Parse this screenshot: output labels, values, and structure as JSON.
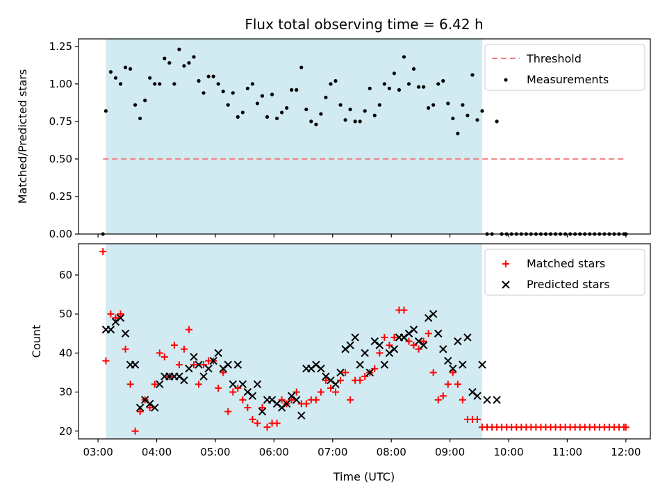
{
  "chart_data": [
    {
      "type": "scatter",
      "title": "Flux total observing time = 6.42 h",
      "xlabel": "",
      "ylabel": "Matched/Predicted stars",
      "xlim": [
        "02:40",
        "12:25"
      ],
      "ylim": [
        0,
        1.3
      ],
      "yticks": [
        "0.00",
        "0.25",
        "0.50",
        "0.75",
        "1.00",
        "1.25"
      ],
      "shaded_interval": [
        "03:08",
        "09:33"
      ],
      "shade_color": "#add8e6",
      "grid": false,
      "legend": "top-right",
      "series": [
        {
          "name": "Threshold",
          "style": "dashed-line",
          "color": "#f08080",
          "x": [
            "03:05",
            "12:00"
          ],
          "y": [
            0.5,
            0.5
          ]
        },
        {
          "name": "Measurements",
          "style": "dot",
          "color": "#000000",
          "x": [
            "03:05",
            "03:08",
            "03:13",
            "03:18",
            "03:23",
            "03:28",
            "03:33",
            "03:38",
            "03:43",
            "03:48",
            "03:53",
            "03:58",
            "04:03",
            "04:08",
            "04:13",
            "04:18",
            "04:23",
            "04:28",
            "04:33",
            "04:38",
            "04:43",
            "04:48",
            "04:53",
            "04:58",
            "05:03",
            "05:08",
            "05:13",
            "05:18",
            "05:23",
            "05:28",
            "05:33",
            "05:38",
            "05:43",
            "05:48",
            "05:53",
            "05:58",
            "06:03",
            "06:08",
            "06:13",
            "06:18",
            "06:23",
            "06:28",
            "06:33",
            "06:38",
            "06:43",
            "06:48",
            "06:53",
            "06:58",
            "07:03",
            "07:08",
            "07:13",
            "07:18",
            "07:23",
            "07:28",
            "07:33",
            "07:38",
            "07:43",
            "07:48",
            "07:53",
            "07:58",
            "08:03",
            "08:08",
            "08:13",
            "08:18",
            "08:23",
            "08:28",
            "08:33",
            "08:38",
            "08:43",
            "08:48",
            "08:53",
            "08:58",
            "09:03",
            "09:08",
            "09:13",
            "09:18",
            "09:23",
            "09:28",
            "09:33",
            "09:38",
            "09:43",
            "09:48",
            "09:53",
            "09:58",
            "10:03",
            "10:08",
            "10:13",
            "10:18",
            "10:23",
            "10:28",
            "10:33",
            "10:38",
            "10:43",
            "10:48",
            "10:53",
            "10:58",
            "11:03",
            "11:08",
            "11:13",
            "11:18",
            "11:23",
            "11:28",
            "11:33",
            "11:38",
            "11:43",
            "11:48",
            "11:53",
            "11:58",
            "12:00"
          ],
          "y": [
            0.0,
            0.82,
            1.08,
            1.04,
            1.0,
            1.11,
            1.1,
            0.86,
            0.77,
            0.89,
            1.04,
            1.0,
            1.0,
            1.17,
            1.14,
            1.0,
            1.23,
            1.12,
            1.14,
            1.18,
            1.02,
            0.94,
            1.05,
            1.05,
            1.0,
            0.95,
            0.86,
            0.94,
            0.78,
            0.81,
            0.97,
            1.0,
            0.87,
            0.92,
            0.78,
            0.93,
            0.77,
            0.81,
            0.84,
            0.96,
            0.96,
            1.11,
            0.83,
            0.75,
            0.73,
            0.8,
            0.91,
            1.0,
            1.02,
            0.86,
            0.76,
            0.83,
            0.75,
            0.75,
            0.82,
            0.97,
            0.79,
            0.86,
            1.0,
            0.97,
            1.07,
            0.96,
            1.18,
            1.0,
            1.1,
            0.98,
            0.98,
            0.84,
            0.86,
            1.0,
            1.02,
            0.87,
            0.77,
            0.67,
            0.86,
            0.79,
            1.06,
            0.76,
            0.82,
            0.0,
            0.0,
            0.75,
            0.0,
            0.0,
            0.0,
            0.0,
            0.0,
            0.0,
            0.0,
            0.0,
            0.0,
            0.0,
            0.0,
            0.0,
            0.0,
            0.0,
            0.0,
            0.0,
            0.0,
            0.0,
            0.0,
            0.0,
            0.0,
            0.0,
            0.0,
            0.0,
            0.0,
            0.0,
            0.0
          ]
        }
      ]
    },
    {
      "type": "scatter",
      "title": "",
      "xlabel": "Time (UTC)",
      "ylabel": "Count",
      "xlim": [
        "02:40",
        "12:25"
      ],
      "ylim": [
        18,
        68
      ],
      "yticks": [
        "20",
        "30",
        "40",
        "50",
        "60"
      ],
      "xticks": [
        "03:00",
        "04:00",
        "05:00",
        "06:00",
        "07:00",
        "08:00",
        "09:00",
        "10:00",
        "11:00",
        "12:00"
      ],
      "shaded_interval": [
        "03:08",
        "09:33"
      ],
      "shade_color": "#add8e6",
      "grid": false,
      "legend": "top-right",
      "series": [
        {
          "name": "Matched stars",
          "style": "plus",
          "color": "#ff0000",
          "x": [
            "03:05",
            "03:08",
            "03:13",
            "03:18",
            "03:23",
            "03:28",
            "03:33",
            "03:38",
            "03:43",
            "03:48",
            "03:53",
            "03:58",
            "04:03",
            "04:08",
            "04:13",
            "04:18",
            "04:23",
            "04:28",
            "04:33",
            "04:38",
            "04:43",
            "04:48",
            "04:53",
            "04:58",
            "05:03",
            "05:08",
            "05:13",
            "05:18",
            "05:23",
            "05:28",
            "05:33",
            "05:38",
            "05:43",
            "05:48",
            "05:53",
            "05:58",
            "06:03",
            "06:08",
            "06:13",
            "06:18",
            "06:23",
            "06:28",
            "06:33",
            "06:38",
            "06:43",
            "06:48",
            "06:53",
            "06:58",
            "07:03",
            "07:08",
            "07:13",
            "07:18",
            "07:23",
            "07:28",
            "07:33",
            "07:38",
            "07:43",
            "07:48",
            "07:53",
            "07:58",
            "08:03",
            "08:08",
            "08:13",
            "08:18",
            "08:23",
            "08:28",
            "08:33",
            "08:38",
            "08:43",
            "08:48",
            "08:53",
            "08:58",
            "09:03",
            "09:08",
            "09:13",
            "09:18",
            "09:23",
            "09:28",
            "09:33",
            "09:38",
            "09:43",
            "09:48",
            "09:53",
            "09:58",
            "10:03",
            "10:08",
            "10:13",
            "10:18",
            "10:23",
            "10:28",
            "10:33",
            "10:38",
            "10:43",
            "10:48",
            "10:53",
            "10:58",
            "11:03",
            "11:08",
            "11:13",
            "11:18",
            "11:23",
            "11:28",
            "11:33",
            "11:38",
            "11:43",
            "11:48",
            "11:53",
            "11:58",
            "12:00"
          ],
          "y": [
            66,
            38,
            50,
            49,
            50,
            41,
            32,
            20,
            25,
            28,
            26,
            32,
            40,
            39,
            34,
            42,
            37,
            41,
            46,
            37,
            32,
            37,
            38,
            38,
            31,
            35,
            25,
            30,
            31,
            28,
            26,
            23,
            22,
            26,
            21,
            22,
            22,
            28,
            27,
            28,
            30,
            27,
            27,
            28,
            28,
            30,
            33,
            31,
            30,
            33,
            35,
            28,
            33,
            33,
            34,
            35,
            36,
            40,
            44,
            42,
            44,
            51,
            51,
            43,
            42,
            41,
            43,
            45,
            35,
            28,
            29,
            32,
            35,
            32,
            28,
            23,
            23,
            23,
            21,
            21,
            21,
            21,
            21,
            21,
            21,
            21,
            21,
            21,
            21,
            21,
            21,
            21,
            21,
            21,
            21,
            21,
            21,
            21,
            21,
            21,
            21,
            21,
            21,
            21,
            21,
            21,
            21,
            21,
            21
          ]
        },
        {
          "name": "Predicted stars",
          "style": "x",
          "color": "#000000",
          "x": [
            "03:08",
            "03:13",
            "03:18",
            "03:23",
            "03:28",
            "03:33",
            "03:38",
            "03:43",
            "03:48",
            "03:53",
            "03:58",
            "04:03",
            "04:08",
            "04:13",
            "04:18",
            "04:23",
            "04:28",
            "04:33",
            "04:38",
            "04:43",
            "04:48",
            "04:53",
            "04:58",
            "05:03",
            "05:08",
            "05:13",
            "05:18",
            "05:23",
            "05:28",
            "05:33",
            "05:38",
            "05:43",
            "05:48",
            "05:53",
            "05:58",
            "06:03",
            "06:08",
            "06:13",
            "06:18",
            "06:23",
            "06:28",
            "06:33",
            "06:38",
            "06:43",
            "06:48",
            "06:53",
            "06:58",
            "07:03",
            "07:08",
            "07:13",
            "07:18",
            "07:23",
            "07:28",
            "07:33",
            "07:38",
            "07:43",
            "07:48",
            "07:53",
            "07:58",
            "08:03",
            "08:08",
            "08:13",
            "08:18",
            "08:23",
            "08:28",
            "08:33",
            "08:38",
            "08:43",
            "08:48",
            "08:53",
            "08:58",
            "09:03",
            "09:08",
            "09:13",
            "09:18",
            "09:23",
            "09:28",
            "09:33",
            "09:38",
            "09:48"
          ],
          "y": [
            46,
            46,
            48,
            49,
            45,
            37,
            37,
            26,
            28,
            27,
            26,
            32,
            34,
            34,
            34,
            34,
            33,
            36,
            39,
            37,
            34,
            36,
            38,
            40,
            36,
            37,
            32,
            37,
            32,
            30,
            29,
            32,
            25,
            28,
            28,
            27,
            26,
            27,
            29,
            28,
            24,
            36,
            36,
            37,
            36,
            34,
            33,
            32,
            35,
            41,
            42,
            44,
            37,
            40,
            35,
            43,
            42,
            37,
            40,
            41,
            44,
            44,
            45,
            46,
            43,
            42,
            49,
            50,
            45,
            41,
            38,
            36,
            43,
            37,
            44,
            30,
            29,
            37,
            28,
            28
          ]
        }
      ]
    }
  ]
}
